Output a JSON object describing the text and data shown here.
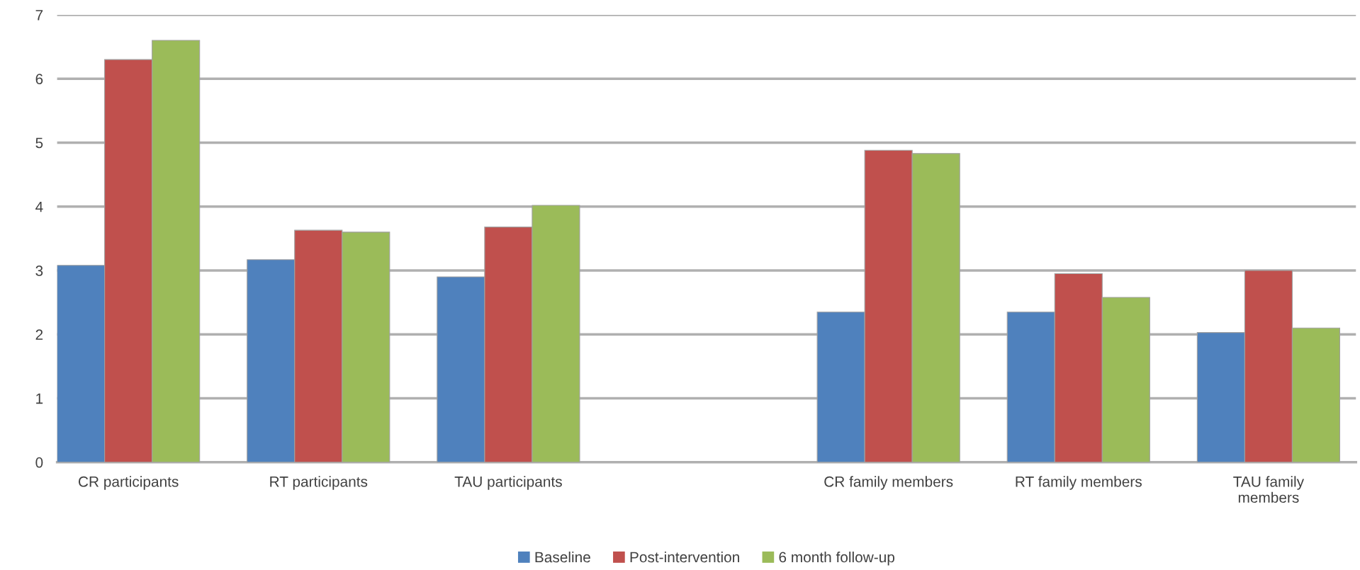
{
  "chart_data": {
    "type": "bar",
    "categories": [
      "CR participants",
      "RT participants",
      "TAU participants",
      null,
      "CR family members",
      "RT family members",
      "TAU family\nmembers"
    ],
    "series": [
      {
        "name": "Baseline",
        "color": "#4f81bd",
        "values": [
          3.08,
          3.17,
          2.9,
          null,
          2.35,
          2.35,
          2.03
        ]
      },
      {
        "name": "Post-intervention",
        "color": "#c0504d",
        "values": [
          6.3,
          3.63,
          3.68,
          null,
          4.88,
          2.95,
          3.0
        ]
      },
      {
        "name": "6 month follow-up",
        "color": "#9bbb59",
        "values": [
          6.6,
          3.6,
          4.02,
          null,
          4.83,
          2.58,
          2.1
        ]
      }
    ],
    "ylim": [
      0,
      7
    ],
    "yticks": [
      0,
      1,
      2,
      3,
      4,
      5,
      6,
      7
    ],
    "grid": "y",
    "legend": "bottom"
  }
}
